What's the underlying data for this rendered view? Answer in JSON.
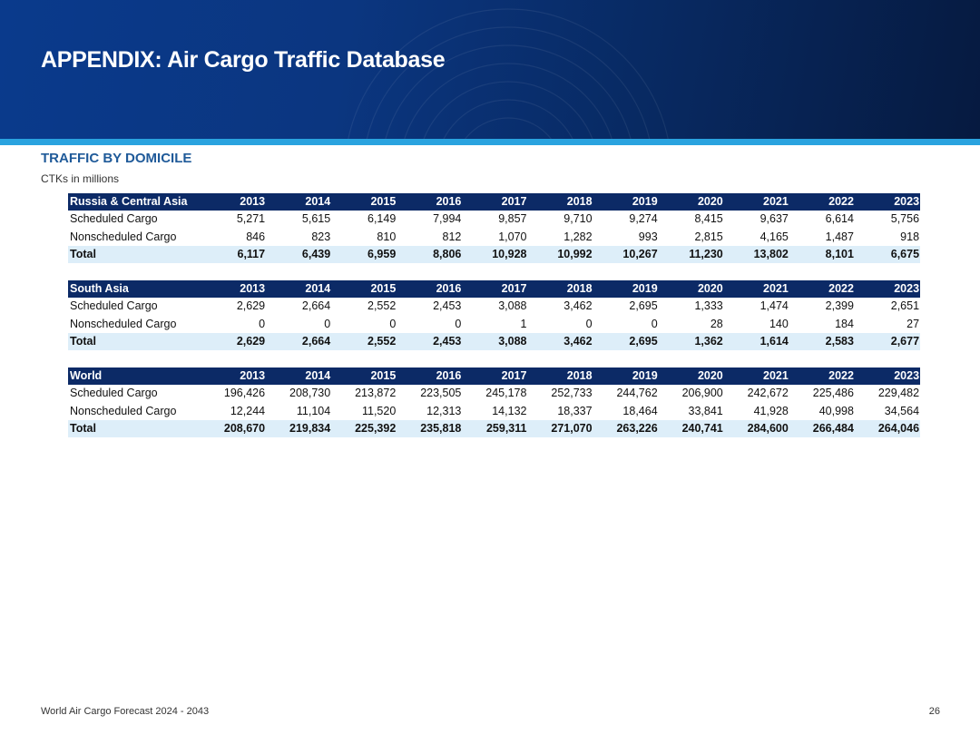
{
  "header": {
    "title": "APPENDIX: Air Cargo Traffic Database"
  },
  "section": {
    "title": "TRAFFIC BY DOMICILE",
    "units": "CTKs in millions"
  },
  "tables": [
    {
      "region": "Russia & Central Asia",
      "years": [
        "2013",
        "2014",
        "2015",
        "2016",
        "2017",
        "2018",
        "2019",
        "2020",
        "2021",
        "2022",
        "2023"
      ],
      "rows": [
        {
          "label": "Scheduled Cargo",
          "values": [
            "5,271",
            "5,615",
            "6,149",
            "7,994",
            "9,857",
            "9,710",
            "9,274",
            "8,415",
            "9,637",
            "6,614",
            "5,756"
          ]
        },
        {
          "label": "Nonscheduled Cargo",
          "values": [
            "846",
            "823",
            "810",
            "812",
            "1,070",
            "1,282",
            "993",
            "2,815",
            "4,165",
            "1,487",
            "918"
          ]
        },
        {
          "label": "Total",
          "values": [
            "6,117",
            "6,439",
            "6,959",
            "8,806",
            "10,928",
            "10,992",
            "10,267",
            "11,230",
            "13,802",
            "8,101",
            "6,675"
          ]
        }
      ]
    },
    {
      "region": "South Asia",
      "years": [
        "2013",
        "2014",
        "2015",
        "2016",
        "2017",
        "2018",
        "2019",
        "2020",
        "2021",
        "2022",
        "2023"
      ],
      "rows": [
        {
          "label": "Scheduled Cargo",
          "values": [
            "2,629",
            "2,664",
            "2,552",
            "2,453",
            "3,088",
            "3,462",
            "2,695",
            "1,333",
            "1,474",
            "2,399",
            "2,651"
          ]
        },
        {
          "label": "Nonscheduled Cargo",
          "values": [
            "0",
            "0",
            "0",
            "0",
            "1",
            "0",
            "0",
            "28",
            "140",
            "184",
            "27"
          ]
        },
        {
          "label": "Total",
          "values": [
            "2,629",
            "2,664",
            "2,552",
            "2,453",
            "3,088",
            "3,462",
            "2,695",
            "1,362",
            "1,614",
            "2,583",
            "2,677"
          ]
        }
      ]
    },
    {
      "region": "World",
      "years": [
        "2013",
        "2014",
        "2015",
        "2016",
        "2017",
        "2018",
        "2019",
        "2020",
        "2021",
        "2022",
        "2023"
      ],
      "rows": [
        {
          "label": "Scheduled Cargo",
          "values": [
            "196,426",
            "208,730",
            "213,872",
            "223,505",
            "245,178",
            "252,733",
            "244,762",
            "206,900",
            "242,672",
            "225,486",
            "229,482"
          ]
        },
        {
          "label": "Nonscheduled Cargo",
          "values": [
            "12,244",
            "11,104",
            "11,520",
            "12,313",
            "14,132",
            "18,337",
            "18,464",
            "33,841",
            "41,928",
            "40,998",
            "34,564"
          ]
        },
        {
          "label": "Total",
          "values": [
            "208,670",
            "219,834",
            "225,392",
            "235,818",
            "259,311",
            "271,070",
            "263,226",
            "240,741",
            "284,600",
            "266,484",
            "264,046"
          ]
        }
      ]
    }
  ],
  "footer": {
    "left": "World Air Cargo Forecast 2024 - 2043",
    "page": "26"
  }
}
